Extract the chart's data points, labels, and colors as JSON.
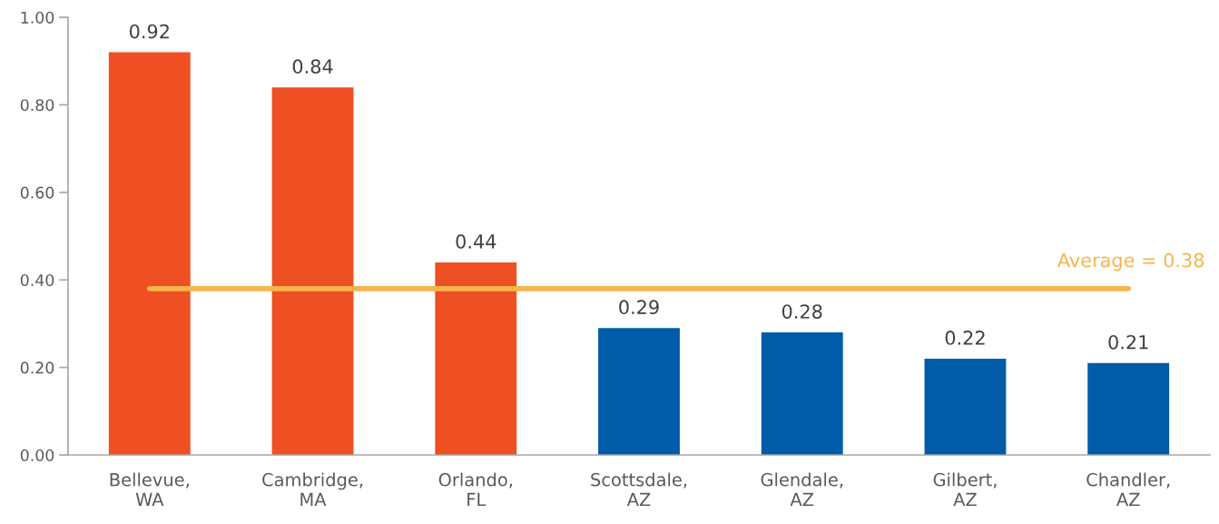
{
  "chart_data": {
    "type": "bar",
    "categories": [
      "Bellevue,\nWA",
      "Cambridge,\nMA",
      "Orlando,\nFL",
      "Scottsdale,\nAZ",
      "Glendale,\nAZ",
      "Gilbert,\nAZ",
      "Chandler,\nAZ"
    ],
    "values": [
      0.92,
      0.84,
      0.44,
      0.29,
      0.28,
      0.22,
      0.21
    ],
    "colors": [
      "#ef5023",
      "#ef5023",
      "#ef5023",
      "#005ca9",
      "#005ca9",
      "#005ca9",
      "#005ca9"
    ],
    "ylim": [
      0,
      1
    ],
    "yticks": [
      {
        "value": 0,
        "label": "0.00"
      },
      {
        "value": 0.2,
        "label": "0.20"
      },
      {
        "value": 0.4,
        "label": "0.40"
      },
      {
        "value": 0.6,
        "label": "0.60"
      },
      {
        "value": 0.8,
        "label": "0.80"
      },
      {
        "value": 1,
        "label": "1.00"
      }
    ],
    "data_labels": true,
    "grid": false,
    "ref_lines": [
      {
        "axis": "y",
        "value": 0.38,
        "label": "Average = 0.38",
        "color": "#f5b54a"
      }
    ]
  }
}
